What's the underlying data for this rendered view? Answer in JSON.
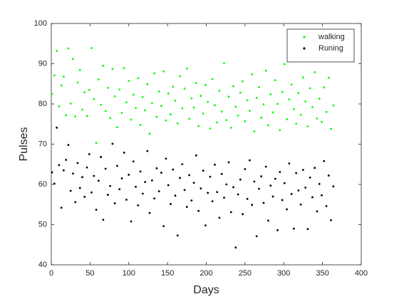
{
  "chart_data": {
    "type": "scatter",
    "xlabel": "Days",
    "ylabel": "Pulses",
    "x": [
      1,
      4,
      7,
      10,
      13,
      16,
      19,
      22,
      25,
      28,
      31,
      34,
      37,
      40,
      43,
      46,
      49,
      52,
      55,
      58,
      61,
      64,
      67,
      70,
      73,
      76,
      79,
      82,
      85,
      88,
      91,
      94,
      97,
      100,
      103,
      106,
      109,
      112,
      115,
      118,
      121,
      124,
      127,
      130,
      133,
      136,
      139,
      142,
      145,
      148,
      151,
      154,
      157,
      160,
      163,
      166,
      169,
      172,
      175,
      178,
      181,
      184,
      187,
      190,
      193,
      196,
      199,
      202,
      205,
      208,
      211,
      214,
      217,
      220,
      223,
      226,
      229,
      232,
      235,
      238,
      241,
      244,
      247,
      250,
      253,
      256,
      259,
      262,
      265,
      268,
      271,
      274,
      277,
      280,
      283,
      286,
      289,
      292,
      295,
      298,
      301,
      304,
      307,
      310,
      313,
      316,
      319,
      322,
      325,
      328,
      331,
      334,
      337,
      340,
      343,
      346,
      349,
      352,
      355,
      358,
      361,
      364
    ],
    "series": [
      {
        "name": "walking",
        "color": "#00ff00",
        "values": [
          82.5,
          87.1,
          93.2,
          79.4,
          84.6,
          86.8,
          77.2,
          93.8,
          80.1,
          91.2,
          76.9,
          85.3,
          88.4,
          78.6,
          82.9,
          77.0,
          83.5,
          93.9,
          81.2,
          70.3,
          86.1,
          79.8,
          89.5,
          78.2,
          84.0,
          76.5,
          88.7,
          81.9,
          74.2,
          83.6,
          77.8,
          88.9,
          80.4,
          85.7,
          76.1,
          82.3,
          79.0,
          86.4,
          74.8,
          81.7,
          78.4,
          84.9,
          72.6,
          80.2,
          87.6,
          76.8,
          83.1,
          79.5,
          88.1,
          75.9,
          82.6,
          77.4,
          84.3,
          80.8,
          75.2,
          86.9,
          78.9,
          83.8,
          88.8,
          76.3,
          81.4,
          79.1,
          85.2,
          74.5,
          82.0,
          77.6,
          84.7,
          80.5,
          73.9,
          86.2,
          79.7,
          75.4,
          83.3,
          78.1,
          90.1,
          76.0,
          81.8,
          74.1,
          84.4,
          79.3,
          77.1,
          82.8,
          85.6,
          75.7,
          80.9,
          78.3,
          87.4,
          73.2,
          81.5,
          84.2,
          76.6,
          79.9,
          88.3,
          74.7,
          82.4,
          77.9,
          85.9,
          80.0,
          73.5,
          83.0,
          89.9,
          76.2,
          81.1,
          84.8,
          78.7,
          75.1,
          82.7,
          77.3,
          86.6,
          80.6,
          74.4,
          83.9,
          79.2,
          87.9,
          76.4,
          81.3,
          75.5,
          84.1,
          78.0,
          86.5,
          73.8,
          79.6
        ]
      },
      {
        "name": "Runing",
        "color": "#000000",
        "values": [
          63.0,
          60.2,
          74.1,
          64.8,
          54.2,
          63.5,
          66.1,
          69.8,
          58.4,
          62.7,
          55.6,
          65.3,
          59.1,
          61.8,
          56.9,
          64.2,
          67.5,
          58.0,
          62.1,
          53.7,
          60.9,
          66.8,
          51.2,
          63.9,
          57.4,
          59.6,
          70.1,
          55.3,
          64.6,
          58.8,
          61.5,
          67.9,
          56.2,
          62.4,
          50.8,
          65.7,
          59.4,
          54.8,
          63.2,
          57.7,
          60.6,
          68.3,
          52.9,
          61.0,
          56.5,
          64.0,
          58.3,
          62.9,
          49.6,
          66.4,
          59.8,
          55.1,
          63.7,
          57.2,
          47.3,
          61.6,
          65.0,
          58.6,
          54.4,
          62.3,
          56.0,
          60.4,
          67.2,
          53.4,
          59.0,
          63.4,
          49.8,
          57.9,
          61.9,
          55.8,
          64.9,
          58.1,
          51.7,
          62.6,
          56.7,
          60.0,
          65.5,
          53.1,
          59.3,
          44.3,
          57.5,
          61.2,
          52.6,
          63.8,
          56.4,
          66.0,
          54.9,
          60.7,
          47.1,
          58.9,
          62.0,
          55.4,
          64.4,
          51.0,
          59.7,
          57.0,
          61.4,
          48.6,
          63.1,
          56.1,
          60.3,
          53.8,
          65.2,
          57.6,
          49.0,
          62.8,
          58.5,
          55.0,
          63.6,
          59.2,
          48.9,
          61.7,
          56.8,
          64.1,
          53.3,
          60.1,
          57.3,
          65.8,
          54.6,
          62.2,
          51.1,
          59.5
        ]
      }
    ],
    "xlim": [
      0,
      400
    ],
    "xticks": [
      0,
      50,
      100,
      150,
      200,
      250,
      300,
      350,
      400
    ],
    "ylim": [
      40,
      100
    ],
    "yticks": [
      40,
      50,
      60,
      70,
      80,
      90,
      100
    ],
    "grid": false,
    "legend": "northeast"
  }
}
